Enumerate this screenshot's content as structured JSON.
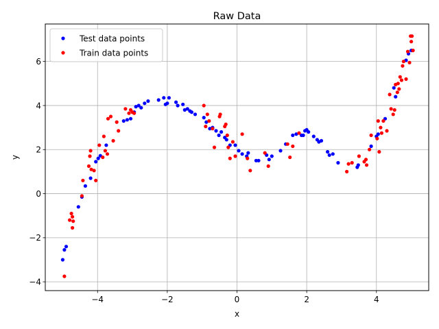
{
  "chart_data": {
    "type": "scatter",
    "title": "Raw Data",
    "xlabel": "x",
    "ylabel": "y",
    "xlim": [
      -5.5,
      5.5
    ],
    "ylim": [
      -4.4,
      7.7
    ],
    "xticks": [
      -4,
      -2,
      0,
      2,
      4
    ],
    "yticks": [
      -4,
      -2,
      0,
      2,
      4,
      6
    ],
    "grid": true,
    "legend_position": "upper left",
    "series": [
      {
        "name": "Test data points",
        "color": "#0000ff",
        "points": [
          [
            -5.0,
            -3.0
          ],
          [
            -4.95,
            -2.55
          ],
          [
            -4.9,
            -2.4
          ],
          [
            -4.55,
            -0.6
          ],
          [
            -4.45,
            -0.15
          ],
          [
            -4.35,
            0.35
          ],
          [
            -4.2,
            0.7
          ],
          [
            -4.05,
            1.45
          ],
          [
            -3.98,
            1.6
          ],
          [
            -3.92,
            1.72
          ],
          [
            -3.75,
            2.2
          ],
          [
            -3.25,
            3.3
          ],
          [
            -3.15,
            3.35
          ],
          [
            -3.05,
            3.4
          ],
          [
            -2.95,
            3.7
          ],
          [
            -2.9,
            3.95
          ],
          [
            -2.82,
            4.0
          ],
          [
            -2.75,
            3.9
          ],
          [
            -2.65,
            4.1
          ],
          [
            -2.55,
            4.2
          ],
          [
            -2.25,
            4.25
          ],
          [
            -2.1,
            4.35
          ],
          [
            -2.05,
            4.05
          ],
          [
            -2.0,
            4.1
          ],
          [
            -1.95,
            4.35
          ],
          [
            -1.75,
            4.15
          ],
          [
            -1.7,
            4.0
          ],
          [
            -1.55,
            4.05
          ],
          [
            -1.5,
            3.8
          ],
          [
            -1.42,
            3.85
          ],
          [
            -1.35,
            3.75
          ],
          [
            -1.3,
            3.7
          ],
          [
            -1.2,
            3.6
          ],
          [
            -0.95,
            3.45
          ],
          [
            -0.88,
            3.25
          ],
          [
            -0.78,
            2.95
          ],
          [
            -0.7,
            3.0
          ],
          [
            -0.6,
            2.85
          ],
          [
            -0.52,
            2.65
          ],
          [
            -0.45,
            2.8
          ],
          [
            -0.35,
            2.55
          ],
          [
            -0.3,
            2.45
          ],
          [
            -0.2,
            2.2
          ],
          [
            -0.05,
            2.2
          ],
          [
            0.05,
            1.95
          ],
          [
            0.15,
            1.8
          ],
          [
            0.28,
            1.7
          ],
          [
            0.32,
            1.85
          ],
          [
            0.55,
            1.5
          ],
          [
            0.62,
            1.5
          ],
          [
            0.85,
            1.75
          ],
          [
            0.92,
            1.55
          ],
          [
            1.0,
            1.7
          ],
          [
            1.25,
            1.95
          ],
          [
            1.4,
            2.25
          ],
          [
            1.6,
            2.65
          ],
          [
            1.7,
            2.7
          ],
          [
            1.85,
            2.65
          ],
          [
            1.9,
            2.65
          ],
          [
            1.95,
            2.85
          ],
          [
            2.0,
            2.9
          ],
          [
            2.05,
            2.8
          ],
          [
            2.2,
            2.6
          ],
          [
            2.3,
            2.45
          ],
          [
            2.35,
            2.35
          ],
          [
            2.42,
            2.4
          ],
          [
            2.6,
            1.9
          ],
          [
            2.65,
            1.75
          ],
          [
            2.75,
            1.8
          ],
          [
            2.9,
            1.4
          ],
          [
            3.45,
            1.2
          ],
          [
            3.48,
            1.3
          ],
          [
            3.85,
            2.15
          ],
          [
            4.0,
            2.6
          ],
          [
            4.05,
            2.7
          ],
          [
            4.25,
            3.4
          ],
          [
            4.5,
            4.8
          ],
          [
            4.55,
            4.4
          ],
          [
            4.85,
            6.05
          ],
          [
            4.92,
            6.35
          ],
          [
            5.0,
            6.5
          ]
        ]
      },
      {
        "name": "Train data points",
        "color": "#ff0000",
        "points": [
          [
            -4.95,
            -3.75
          ],
          [
            -4.8,
            -1.2
          ],
          [
            -4.75,
            -0.9
          ],
          [
            -4.72,
            -1.05
          ],
          [
            -4.7,
            -1.25
          ],
          [
            -4.72,
            -1.55
          ],
          [
            -4.45,
            -0.1
          ],
          [
            -4.42,
            0.6
          ],
          [
            -4.25,
            1.25
          ],
          [
            -4.22,
            1.7
          ],
          [
            -4.2,
            1.95
          ],
          [
            -4.18,
            1.1
          ],
          [
            -4.1,
            1.05
          ],
          [
            -4.05,
            0.6
          ],
          [
            -3.95,
            2.2
          ],
          [
            -3.85,
            1.65
          ],
          [
            -3.82,
            2.6
          ],
          [
            -3.78,
            1.95
          ],
          [
            -3.72,
            1.8
          ],
          [
            -3.7,
            3.4
          ],
          [
            -3.62,
            3.5
          ],
          [
            -3.55,
            2.4
          ],
          [
            -3.45,
            3.25
          ],
          [
            -3.4,
            2.85
          ],
          [
            -3.2,
            3.85
          ],
          [
            -3.1,
            3.65
          ],
          [
            -3.05,
            3.8
          ],
          [
            -3.0,
            3.7
          ],
          [
            -2.95,
            3.65
          ],
          [
            -0.95,
            4.0
          ],
          [
            -0.9,
            3.05
          ],
          [
            -0.85,
            3.6
          ],
          [
            -0.8,
            3.3
          ],
          [
            -0.7,
            2.95
          ],
          [
            -0.65,
            2.1
          ],
          [
            -0.5,
            3.5
          ],
          [
            -0.48,
            3.6
          ],
          [
            -0.35,
            3.05
          ],
          [
            -0.32,
            3.15
          ],
          [
            -0.28,
            2.65
          ],
          [
            -0.25,
            2.1
          ],
          [
            -0.2,
            1.6
          ],
          [
            -0.12,
            2.35
          ],
          [
            -0.05,
            1.7
          ],
          [
            0.15,
            2.7
          ],
          [
            0.3,
            1.6
          ],
          [
            0.38,
            1.05
          ],
          [
            0.8,
            1.85
          ],
          [
            0.9,
            1.25
          ],
          [
            1.45,
            2.25
          ],
          [
            1.52,
            1.65
          ],
          [
            1.6,
            2.15
          ],
          [
            1.78,
            2.75
          ],
          [
            3.15,
            1.0
          ],
          [
            3.2,
            1.35
          ],
          [
            3.3,
            1.4
          ],
          [
            3.5,
            1.7
          ],
          [
            3.65,
            1.45
          ],
          [
            3.7,
            1.55
          ],
          [
            3.72,
            1.3
          ],
          [
            3.8,
            2.0
          ],
          [
            3.85,
            2.65
          ],
          [
            4.02,
            2.5
          ],
          [
            4.05,
            3.3
          ],
          [
            4.08,
            1.9
          ],
          [
            4.12,
            3.0
          ],
          [
            4.15,
            2.75
          ],
          [
            4.2,
            3.3
          ],
          [
            4.3,
            2.85
          ],
          [
            4.38,
            4.5
          ],
          [
            4.42,
            3.85
          ],
          [
            4.48,
            3.6
          ],
          [
            4.52,
            3.8
          ],
          [
            4.55,
            4.95
          ],
          [
            4.6,
            4.6
          ],
          [
            4.62,
            5.0
          ],
          [
            4.65,
            4.75
          ],
          [
            4.68,
            5.3
          ],
          [
            4.72,
            5.15
          ],
          [
            4.75,
            5.8
          ],
          [
            4.78,
            6.0
          ],
          [
            4.85,
            5.2
          ],
          [
            4.9,
            6.45
          ],
          [
            4.95,
            5.95
          ],
          [
            4.98,
            7.15
          ],
          [
            5.0,
            6.9
          ],
          [
            5.02,
            7.15
          ],
          [
            5.05,
            6.5
          ]
        ]
      }
    ]
  }
}
